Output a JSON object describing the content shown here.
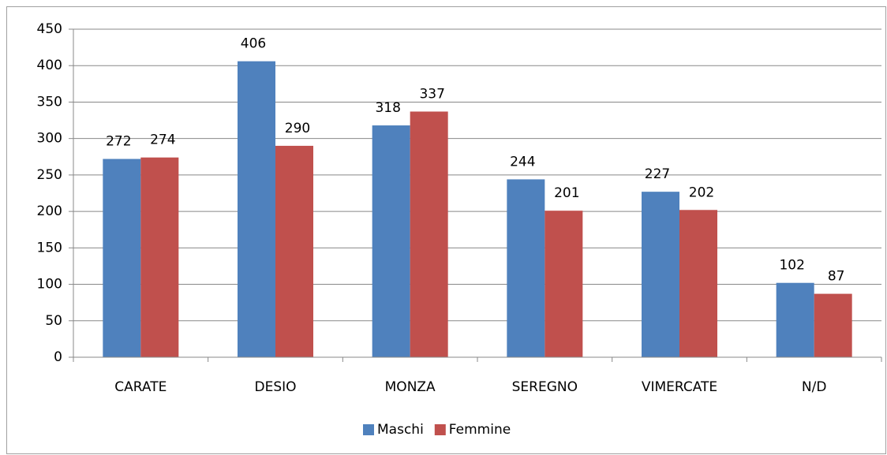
{
  "chart_data": {
    "type": "bar",
    "categories": [
      "CARATE",
      "DESIO",
      "MONZA",
      "SEREGNO",
      "VIMERCATE",
      "N/D"
    ],
    "series": [
      {
        "name": "Maschi",
        "color": "#4f81bd",
        "values": [
          272,
          406,
          318,
          244,
          227,
          102
        ]
      },
      {
        "name": "Femmine",
        "color": "#c0504d",
        "values": [
          274,
          290,
          337,
          201,
          202,
          87
        ]
      }
    ],
    "ylim": [
      0,
      450
    ],
    "yticks": [
      0,
      50,
      100,
      150,
      200,
      250,
      300,
      350,
      400,
      450
    ],
    "grid": true,
    "legend": "bottom"
  }
}
